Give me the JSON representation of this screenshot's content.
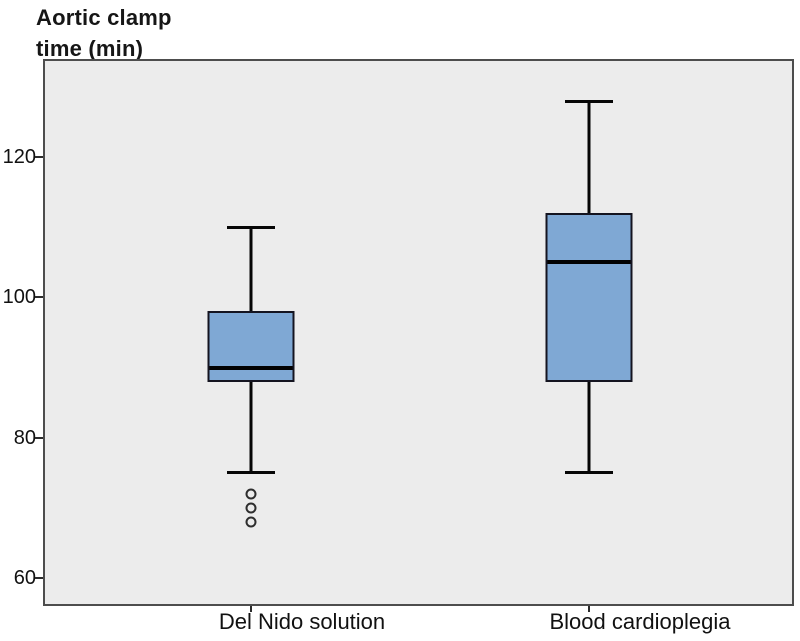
{
  "title": {
    "line1": "Aortic clamp",
    "line2": "time (min)"
  },
  "colors": {
    "box_fill": "#7fa8d4",
    "box_border": "#141420",
    "median": "#020202",
    "whisker": "#060606",
    "plot_background": "#ececec",
    "frame_border": "#4d4d4d",
    "text": "#111111"
  },
  "chart_data": {
    "type": "boxplot",
    "title": "Aortic clamp time (min)",
    "ylabel": "Aortic clamp time (min)",
    "xlabel": "",
    "ylim": [
      56,
      134
    ],
    "yticks": [
      "60",
      "80",
      "100",
      "120"
    ],
    "ytick_values": [
      60,
      80,
      100,
      120
    ],
    "grid": false,
    "legend": "none",
    "categories": [
      "Del Nido solution",
      "Blood cardioplegia"
    ],
    "series": [
      {
        "name": "Del Nido solution",
        "whisker_low": 75,
        "q1": 88,
        "median": 90,
        "q3": 98,
        "whisker_high": 110,
        "outliers": [
          72,
          70,
          68
        ]
      },
      {
        "name": "Blood cardioplegia",
        "whisker_low": 75,
        "q1": 88,
        "median": 105,
        "q3": 112,
        "whisker_high": 128,
        "outliers": []
      }
    ]
  }
}
